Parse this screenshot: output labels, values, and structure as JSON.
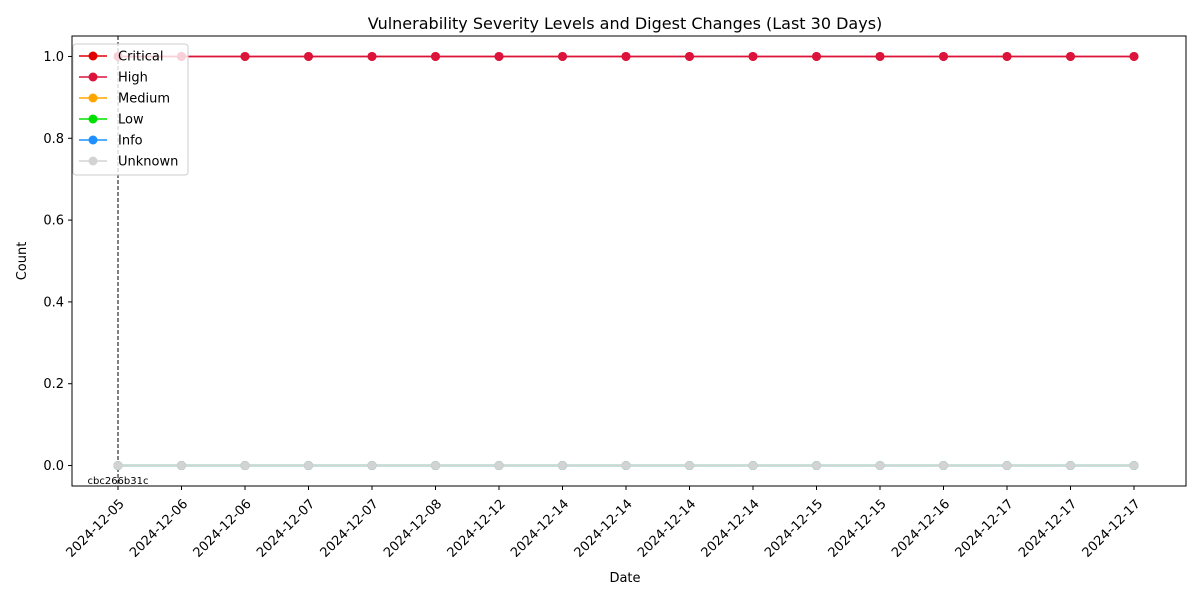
{
  "chart_data": {
    "type": "line",
    "title": "Vulnerability Severity Levels and Digest Changes (Last 30 Days)",
    "xlabel": "Date",
    "ylabel": "Count",
    "ylim": [
      -0.05,
      1.05
    ],
    "yticks": [
      0.0,
      0.2,
      0.4,
      0.6,
      0.8,
      1.0
    ],
    "ytick_labels": [
      "0.0",
      "0.2",
      "0.4",
      "0.6",
      "0.8",
      "1.0"
    ],
    "categories": [
      "2024-12-05",
      "2024-12-06",
      "2024-12-06",
      "2024-12-07",
      "2024-12-07",
      "2024-12-08",
      "2024-12-12",
      "2024-12-14",
      "2024-12-14",
      "2024-12-14",
      "2024-12-14",
      "2024-12-15",
      "2024-12-15",
      "2024-12-16",
      "2024-12-17",
      "2024-12-17",
      "2024-12-17"
    ],
    "legend_position": "top-left",
    "grid": false,
    "series": [
      {
        "name": "Critical",
        "color": "#e00000",
        "values": [
          1,
          1,
          1,
          1,
          1,
          1,
          1,
          1,
          1,
          1,
          1,
          1,
          1,
          1,
          1,
          1,
          1
        ]
      },
      {
        "name": "High",
        "color": "#dc143c",
        "values": [
          1,
          1,
          1,
          1,
          1,
          1,
          1,
          1,
          1,
          1,
          1,
          1,
          1,
          1,
          1,
          1,
          1
        ]
      },
      {
        "name": "Medium",
        "color": "#ffa500",
        "values": [
          0,
          0,
          0,
          0,
          0,
          0,
          0,
          0,
          0,
          0,
          0,
          0,
          0,
          0,
          0,
          0,
          0
        ]
      },
      {
        "name": "Low",
        "color": "#00e000",
        "values": [
          0,
          0,
          0,
          0,
          0,
          0,
          0,
          0,
          0,
          0,
          0,
          0,
          0,
          0,
          0,
          0,
          0
        ]
      },
      {
        "name": "Info",
        "color": "#1e90ff",
        "values": [
          0,
          0,
          0,
          0,
          0,
          0,
          0,
          0,
          0,
          0,
          0,
          0,
          0,
          0,
          0,
          0,
          0
        ]
      },
      {
        "name": "Unknown",
        "color": "#d3d3d3",
        "values": [
          0,
          0,
          0,
          0,
          0,
          0,
          0,
          0,
          0,
          0,
          0,
          0,
          0,
          0,
          0,
          0,
          0
        ]
      }
    ],
    "annotations": [
      {
        "x_index": 0,
        "label": "cbc266b31c"
      }
    ]
  }
}
